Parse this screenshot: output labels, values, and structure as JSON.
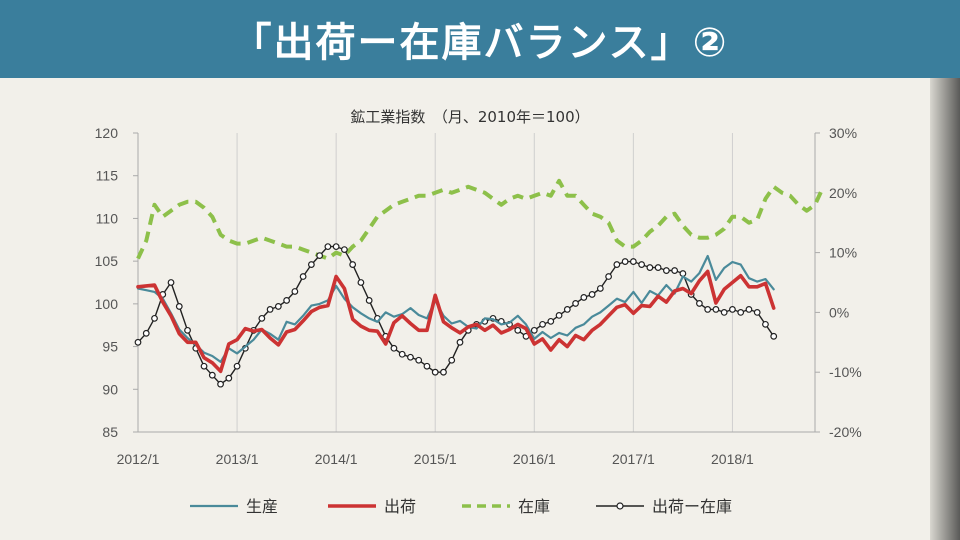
{
  "header": {
    "title": "「出荷ー在庫バランス」②"
  },
  "chart_data": {
    "type": "line",
    "title": "鉱工業指数　（月、2010年＝100）",
    "xlabel": "",
    "ylabel_left": "",
    "ylabel_right": "",
    "ylim_left": [
      85,
      120
    ],
    "ylim_right": [
      -20,
      30
    ],
    "left_ticks": [
      "120",
      "115",
      "110",
      "105",
      "100",
      "95",
      "90",
      "85"
    ],
    "right_ticks": [
      "30%",
      "20%",
      "10%",
      "0%",
      "-10%",
      "-20%"
    ],
    "x_start": "2012/1",
    "x_ticks": [
      "2012/1",
      "2013/1",
      "2014/1",
      "2015/1",
      "2016/1",
      "2017/1",
      "2018/1"
    ],
    "grid": "vertical",
    "legend_position": "bottom",
    "colors": {
      "production": "#4a8a9a",
      "shipments": "#cc3333",
      "inventory": "#8dc04a",
      "balance": "#222222"
    },
    "series": [
      {
        "name": "生産",
        "axis": "left",
        "values": [
          101.8,
          101.6,
          101.4,
          100.6,
          98.9,
          97.0,
          96.0,
          95.2,
          94.3,
          93.9,
          93.2,
          94.8,
          94.2,
          95.0,
          95.8,
          97.0,
          96.5,
          95.8,
          97.9,
          97.6,
          98.6,
          99.8,
          100.0,
          100.4,
          102.1,
          100.6,
          99.6,
          98.9,
          98.3,
          97.9,
          99.0,
          98.5,
          98.8,
          99.5,
          98.7,
          98.3,
          100.4,
          98.6,
          97.7,
          98.0,
          97.3,
          97.1,
          98.3,
          98.2,
          97.6,
          97.8,
          98.6,
          97.6,
          95.9,
          96.7,
          96.0,
          96.6,
          96.3,
          97.2,
          97.6,
          98.5,
          99.0,
          99.8,
          100.6,
          100.2,
          101.4,
          100.1,
          101.5,
          101.0,
          102.2,
          101.2,
          103.2,
          102.6,
          103.6,
          105.6,
          102.8,
          104.2,
          104.9,
          104.6,
          103.0,
          102.6,
          102.9,
          101.7
        ]
      },
      {
        "name": "出荷",
        "axis": "left",
        "values": [
          102.0,
          102.1,
          102.2,
          100.2,
          98.6,
          96.5,
          95.5,
          95.5,
          93.7,
          93.1,
          92.1,
          95.3,
          95.8,
          97.1,
          96.8,
          97.0,
          96.0,
          95.2,
          96.7,
          97.0,
          98.0,
          99.1,
          99.6,
          99.8,
          103.2,
          101.8,
          98.2,
          97.4,
          96.9,
          96.8,
          95.3,
          97.8,
          98.6,
          97.7,
          96.9,
          96.9,
          101.0,
          97.9,
          97.2,
          96.6,
          97.3,
          97.6,
          96.9,
          97.5,
          96.6,
          97.0,
          97.6,
          97.1,
          95.3,
          95.9,
          94.6,
          95.8,
          95.0,
          96.3,
          95.8,
          96.9,
          97.6,
          98.6,
          99.6,
          99.9,
          98.9,
          99.8,
          99.7,
          100.9,
          100.2,
          101.5,
          101.8,
          101.2,
          102.7,
          103.8,
          100.1,
          101.7,
          102.5,
          103.3,
          102.0,
          102.0,
          102.4,
          99.5
        ]
      },
      {
        "name": "在庫",
        "axis": "right",
        "values": [
          9,
          12,
          18,
          16,
          17,
          18,
          18.5,
          18.5,
          17.5,
          16,
          13,
          12,
          11.5,
          11.5,
          12,
          12.5,
          12,
          11.5,
          11,
          11,
          10.5,
          10,
          9.5,
          9,
          10,
          9.5,
          11,
          12,
          14,
          16,
          17,
          18,
          18.5,
          19,
          19.5,
          19.5,
          20,
          20.5,
          20,
          20.5,
          21,
          20.5,
          20,
          19,
          18,
          19,
          19.5,
          19,
          19.5,
          20,
          19.5,
          22,
          19.5,
          19.5,
          18,
          16.5,
          16,
          15,
          12,
          11,
          11,
          12,
          13.5,
          14.5,
          16,
          16.5,
          14.5,
          13,
          12.5,
          12.5,
          13,
          14,
          16,
          16,
          15,
          15.5,
          19,
          21,
          20,
          19.5,
          18,
          17,
          18,
          21
        ]
      },
      {
        "name": "出荷ー在庫",
        "axis": "right",
        "values": [
          -5,
          -3.5,
          -1,
          3,
          5,
          1,
          -3,
          -6,
          -9,
          -10.5,
          -12,
          -11,
          -9,
          -6,
          -3,
          -1,
          0.5,
          1,
          2,
          3.5,
          6,
          8,
          9.5,
          11,
          11,
          10.5,
          8,
          5,
          2,
          -1,
          -4,
          -6,
          -7,
          -7.5,
          -8,
          -9,
          -10,
          -10,
          -8,
          -5,
          -3,
          -2,
          -1.5,
          -1,
          -1.5,
          -2,
          -3,
          -4,
          -3,
          -2,
          -1.5,
          -0.5,
          0.5,
          1.5,
          2.5,
          3,
          4,
          6,
          8,
          8.5,
          8.5,
          8,
          7.5,
          7.5,
          7,
          7,
          6.5,
          3,
          1.5,
          0.5,
          0.5,
          0,
          0.5,
          0,
          0.5,
          0,
          -2,
          -4
        ]
      }
    ]
  }
}
